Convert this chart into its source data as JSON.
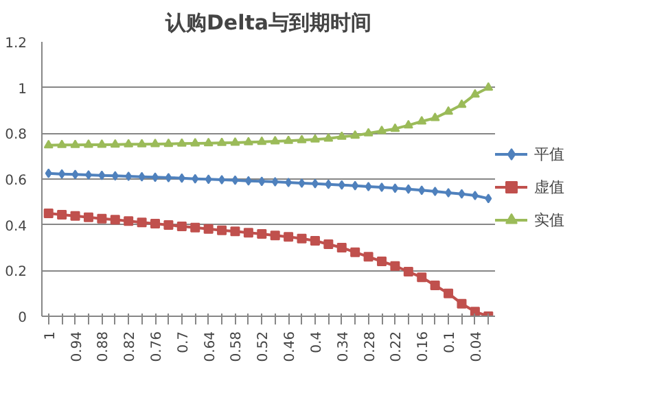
{
  "chart_data": {
    "type": "line",
    "title": "认购Delta与到期时间",
    "categories": [
      "1",
      null,
      "0.94",
      null,
      "0.88",
      null,
      "0.82",
      null,
      "0.76",
      null,
      "0.7",
      null,
      "0.64",
      null,
      "0.58",
      null,
      "0.52",
      null,
      "0.46",
      null,
      "0.4",
      null,
      "0.34",
      null,
      "0.28",
      null,
      "0.22",
      null,
      "0.16",
      null,
      "0.1",
      null,
      "0.04",
      null
    ],
    "series": [
      {
        "name": "平值",
        "color": "#4f81bd",
        "marker": "diamond",
        "values": [
          0.625,
          0.622,
          0.62,
          0.618,
          0.616,
          0.614,
          0.612,
          0.61,
          0.608,
          0.606,
          0.604,
          0.601,
          0.599,
          0.597,
          0.595,
          0.592,
          0.59,
          0.588,
          0.585,
          0.582,
          0.58,
          0.577,
          0.574,
          0.571,
          0.567,
          0.564,
          0.56,
          0.556,
          0.551,
          0.546,
          0.54,
          0.535,
          0.528,
          0.515
        ]
      },
      {
        "name": "虚值",
        "color": "#c0504d",
        "marker": "square",
        "values": [
          0.45,
          0.444,
          0.439,
          0.433,
          0.427,
          0.422,
          0.416,
          0.41,
          0.405,
          0.399,
          0.393,
          0.388,
          0.382,
          0.376,
          0.371,
          0.365,
          0.36,
          0.353,
          0.347,
          0.34,
          0.33,
          0.315,
          0.3,
          0.28,
          0.26,
          0.24,
          0.22,
          0.195,
          0.17,
          0.135,
          0.1,
          0.055,
          0.02,
          0.0
        ]
      },
      {
        "name": "实值",
        "color": "#9bbb59",
        "marker": "triangle",
        "values": [
          0.748,
          0.749,
          0.749,
          0.75,
          0.75,
          0.751,
          0.752,
          0.752,
          0.753,
          0.754,
          0.755,
          0.756,
          0.757,
          0.758,
          0.759,
          0.761,
          0.763,
          0.765,
          0.767,
          0.77,
          0.773,
          0.777,
          0.785,
          0.79,
          0.8,
          0.81,
          0.82,
          0.835,
          0.852,
          0.867,
          0.895,
          0.925,
          0.97,
          1.0
        ]
      }
    ],
    "ylim": [
      0,
      1.2
    ],
    "yticks": [
      0,
      {
        "value": 0.2,
        "label": "0.2"
      },
      {
        "value": 0.4,
        "label": "0.4"
      },
      {
        "value": 0.6,
        "label": "0.6"
      },
      {
        "value": 0.8,
        "label": "0.8"
      },
      1,
      {
        "value": 1.2,
        "label": "1.2"
      }
    ],
    "grid": "y",
    "legend": "right",
    "line_style": "solid"
  }
}
